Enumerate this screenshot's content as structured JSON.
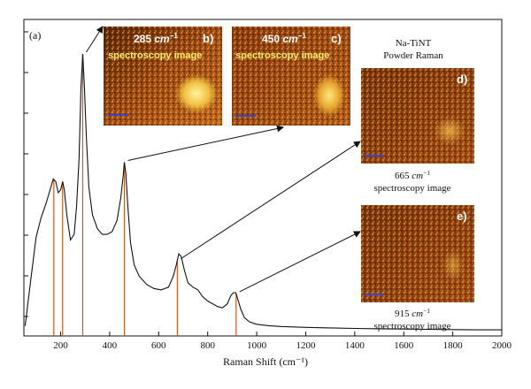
{
  "panel_label": "(a)",
  "chart_data": {
    "type": "line",
    "xlabel": "Raman Shift (cm⁻¹)",
    "ylabel": "",
    "xlim": [
      50,
      2000
    ],
    "xticks": [
      200,
      400,
      600,
      800,
      1000,
      1200,
      1400,
      1600,
      1800,
      2000
    ],
    "y_tick_labels": "none",
    "grid": false,
    "legend": "none",
    "series": [
      {
        "x": [
          55,
          80,
          100,
          120,
          140,
          160,
          170,
          180,
          190,
          200,
          208,
          215,
          225,
          240,
          255,
          265,
          275,
          283,
          290,
          297,
          305,
          315,
          330,
          350,
          370,
          390,
          410,
          430,
          445,
          455,
          460,
          466,
          475,
          485,
          500,
          520,
          550,
          580,
          610,
          640,
          660,
          672,
          682,
          692,
          705,
          720,
          740,
          760,
          780,
          800,
          820,
          840,
          860,
          880,
          895,
          905,
          915,
          925,
          935,
          950,
          970,
          1000,
          1050,
          1100,
          1200,
          1300,
          1400,
          1500,
          1600,
          1700,
          1800,
          1900,
          2000
        ],
        "y": [
          2,
          20,
          34,
          41,
          46,
          52,
          55,
          54,
          50,
          51,
          54,
          51,
          42,
          33,
          35,
          45,
          62,
          88,
          100,
          88,
          70,
          52,
          42,
          37,
          35,
          35,
          36,
          40,
          48,
          56,
          61,
          57,
          44,
          32,
          24,
          20,
          17,
          15.5,
          15,
          16,
          20,
          24,
          28,
          27,
          22,
          17.5,
          16,
          15,
          12.5,
          11,
          10,
          9,
          8.5,
          10,
          13,
          14,
          14,
          11,
          8,
          5,
          3.5,
          2.6,
          2.1,
          1.8,
          1.5,
          1.3,
          1.1,
          1,
          0.9,
          0.8,
          0.7,
          0.6,
          0.6
        ],
        "color": "#111111"
      }
    ],
    "peak_markers": {
      "x": [
        172,
        208,
        290,
        460,
        676,
        916
      ],
      "color": "#d2581e"
    },
    "annotations": [
      {
        "x": 290,
        "target": "b"
      },
      {
        "x": 460,
        "target": "c"
      },
      {
        "x": 676,
        "target": "d"
      },
      {
        "x": 916,
        "target": "e"
      }
    ]
  },
  "insets": {
    "b": {
      "letter": "b)",
      "wavenumber": "285",
      "unit": "cm",
      "exponent": "−1",
      "caption": "spectroscopy image"
    },
    "c": {
      "letter": "c)",
      "wavenumber": "450",
      "unit": "cm",
      "exponent": "−1",
      "caption": "spectroscopy image"
    },
    "d": {
      "letter": "d)",
      "wavenumber": "665",
      "unit": "cm",
      "exponent": "−1",
      "caption": "spectroscopy image"
    },
    "e": {
      "letter": "e)",
      "wavenumber": "915",
      "unit": "cm",
      "exponent": "−1",
      "caption": "spectroscopy image"
    }
  },
  "sample_title": {
    "line1": "Na-TiNT",
    "line2": "Powder Raman"
  }
}
